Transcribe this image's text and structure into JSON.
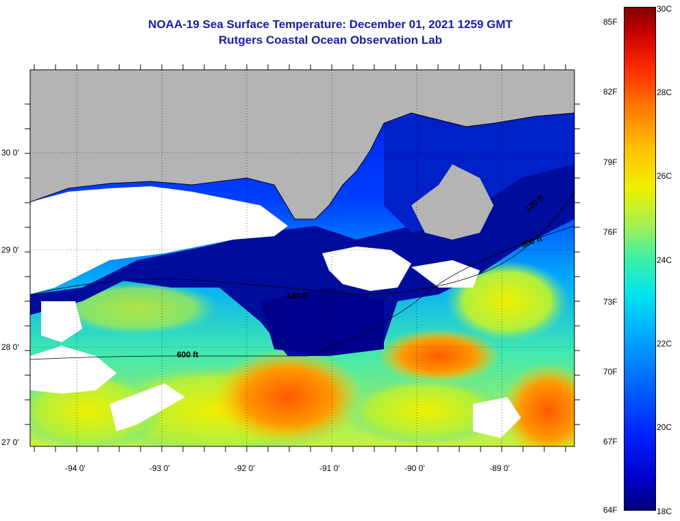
{
  "title": {
    "line1": "NOAA-19 Sea Surface Temperature:  December 01, 2021 1259 GMT",
    "line2": "Rutgers Coastal Ocean Observation Lab"
  },
  "map": {
    "lat_labels": [
      "30 0'",
      "29 0'",
      "28 0'",
      "27 0'"
    ],
    "lon_labels": [
      "-94 0'",
      "-93 0'",
      "-92 0'",
      "-91 0'",
      "-90 0'",
      "-89 0'"
    ],
    "contour_labels": [
      "120 ft",
      "600 ft",
      "120 ft",
      "600 ft"
    ],
    "colors": {
      "land": "#b4b4b4",
      "cloud": "#ffffff",
      "cold_water": "#00008c"
    }
  },
  "colorbar": {
    "celsius": [
      "30C",
      "28C",
      "26C",
      "24C",
      "22C",
      "20C",
      "18C"
    ],
    "fahrenheit": [
      "85F",
      "82F",
      "79F",
      "76F",
      "73F",
      "70F",
      "67F",
      "64F"
    ]
  }
}
